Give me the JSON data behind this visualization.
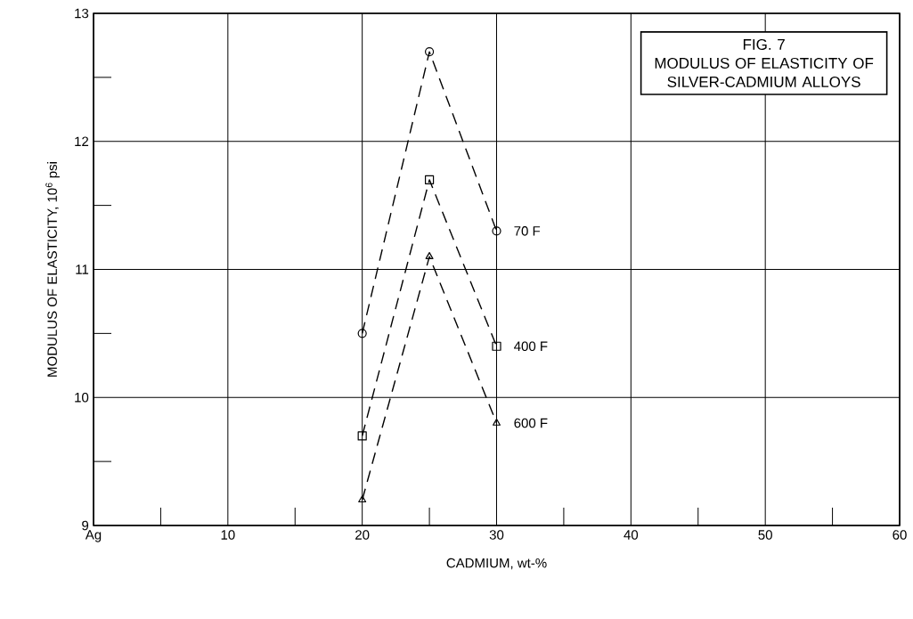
{
  "chart_data": {
    "type": "line",
    "title": "FIG. 7",
    "subtitle": "MODULUS OF ELASTICITY OF SILVER-CADMIUM ALLOYS",
    "xlabel": "CADMIUM,  wt-%",
    "ylabel": "MODULUS OF ELASTICITY,  10$^{6}$ psi",
    "x": [
      20,
      25,
      30
    ],
    "series": [
      {
        "name": "70 F",
        "color": "#000000",
        "marker": "circle",
        "values": [
          10.5,
          12.7,
          11.3
        ]
      },
      {
        "name": "400 F",
        "color": "#000000",
        "marker": "square",
        "values": [
          9.7,
          11.7,
          10.4
        ]
      },
      {
        "name": "600 F",
        "color": "#000000",
        "marker": "triangle",
        "values": [
          9.2,
          11.1,
          9.8
        ]
      }
    ],
    "line_style": "dashed",
    "grid": true,
    "xlim": [
      0,
      60
    ],
    "ylim": [
      9,
      13
    ],
    "xticks": [
      {
        "value": 0,
        "label": "Ag"
      },
      10,
      20,
      30,
      40,
      50,
      60
    ],
    "yticks": [
      9,
      10,
      11,
      12,
      13
    ]
  }
}
